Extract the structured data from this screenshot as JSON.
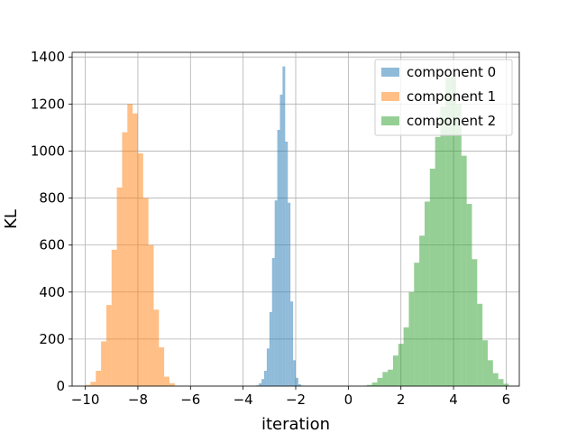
{
  "chart_data": {
    "type": "histogram",
    "xlabel": "iteration",
    "ylabel": "KL",
    "xlim": [
      -10.5,
      6.5
    ],
    "ylim": [
      0,
      1420
    ],
    "xticks": [
      -10,
      -8,
      -6,
      -4,
      -2,
      0,
      2,
      4,
      6
    ],
    "xtick_labels": [
      "−10",
      "−8",
      "−6",
      "−4",
      "−2",
      "0",
      "2",
      "4",
      "6"
    ],
    "yticks": [
      0,
      200,
      400,
      600,
      800,
      1000,
      1200,
      1400
    ],
    "ytick_labels": [
      "0",
      "200",
      "400",
      "600",
      "800",
      "1000",
      "1200",
      "1400"
    ],
    "grid": true,
    "legend_position": "top-right",
    "series": [
      {
        "name": "component 0",
        "color": "#1f77b4",
        "alpha": 0.5,
        "bin_start": -3.5,
        "bin_width": 0.1,
        "counts": [
          3,
          12,
          30,
          65,
          160,
          315,
          545,
          790,
          1090,
          1240,
          1360,
          1040,
          780,
          360,
          110,
          35,
          8,
          2
        ]
      },
      {
        "name": "component 1",
        "color": "#ff7f0e",
        "alpha": 0.5,
        "bin_start": -10.0,
        "bin_width": 0.2,
        "counts": [
          5,
          18,
          65,
          190,
          345,
          580,
          845,
          1080,
          1200,
          1160,
          990,
          800,
          600,
          325,
          165,
          40,
          12
        ]
      },
      {
        "name": "component 2",
        "color": "#2ca02c",
        "alpha": 0.5,
        "bin_start": 0.7,
        "bin_width": 0.2,
        "counts": [
          5,
          15,
          35,
          60,
          70,
          130,
          180,
          250,
          400,
          525,
          640,
          785,
          925,
          1060,
          1190,
          1310,
          1330,
          1200,
          980,
          775,
          540,
          350,
          195,
          110,
          55,
          30,
          10
        ]
      }
    ]
  }
}
